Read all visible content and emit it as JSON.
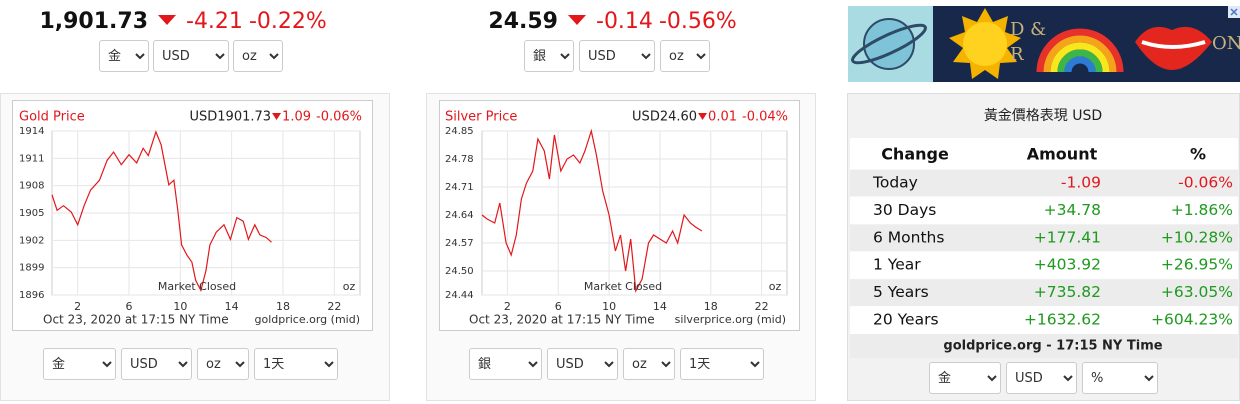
{
  "quotes": [
    {
      "price": "1,901.73",
      "change": "-4.21",
      "change_pct": "-0.22%",
      "selects": [
        "金",
        "USD",
        "oz"
      ]
    },
    {
      "price": "24.59",
      "change": "-0.14",
      "change_pct": "-0.56%",
      "selects": [
        "銀",
        "USD",
        "oz"
      ]
    }
  ],
  "ad": {
    "texts": [
      "D &",
      "R",
      "ON"
    ]
  },
  "chart_data": [
    {
      "type": "line",
      "title": "Gold Price",
      "currency_price": "USD1901.73",
      "change": "1.09",
      "change_pct": "-0.06%",
      "x": [
        0,
        0.4,
        0.9,
        1.5,
        2,
        2.5,
        3,
        3.7,
        4.3,
        4.8,
        5.4,
        6,
        6.6,
        7.1,
        7.5,
        8.1,
        8.5,
        9.1,
        9.5,
        9.8,
        10.1,
        10.5,
        10.9,
        11.2,
        11.6,
        12,
        12.3,
        12.8,
        13.4,
        13.9,
        14.4,
        14.9,
        15.3,
        15.8,
        16.2,
        16.7,
        17.1
      ],
      "values": [
        1907.0,
        1905.3,
        1905.8,
        1905.1,
        1903.7,
        1905.8,
        1907.5,
        1908.6,
        1910.8,
        1911.7,
        1910.3,
        1911.4,
        1910.5,
        1912.1,
        1911.3,
        1913.9,
        1912.5,
        1908.1,
        1908.6,
        1905.3,
        1901.5,
        1900.4,
        1899.6,
        1897.6,
        1896.5,
        1898.7,
        1901.5,
        1902.9,
        1903.7,
        1902.1,
        1904.5,
        1904.1,
        1902.1,
        1903.7,
        1902.6,
        1902.3,
        1901.8
      ],
      "color": "#e3171b",
      "grid": true,
      "xlim": [
        0,
        24
      ],
      "xticks": [
        2,
        6,
        10,
        14,
        18,
        22
      ],
      "ylim": [
        1896,
        1914
      ],
      "yticks": [
        1896,
        1899,
        1902,
        1905,
        1908,
        1911,
        1914
      ],
      "annotation": "Market Closed",
      "unit": "oz",
      "footer_left": "Oct 23, 2020 at 17:15 NY Time",
      "footer_right": "goldprice.org (mid)",
      "selects": [
        "金",
        "USD",
        "oz",
        "1天"
      ]
    },
    {
      "type": "line",
      "title": "Silver Price",
      "currency_price": "USD24.60",
      "change": "0.01",
      "change_pct": "-0.04%",
      "x": [
        0,
        0.4,
        1,
        1.4,
        1.9,
        2.3,
        2.7,
        3.1,
        3.5,
        4,
        4.4,
        4.9,
        5.3,
        5.7,
        6.2,
        6.7,
        7.2,
        7.7,
        8.1,
        8.6,
        9,
        9.5,
        10,
        10.5,
        10.9,
        11.3,
        11.7,
        12.1,
        12.6,
        13.1,
        13.5,
        14,
        14.5,
        15,
        15.4,
        15.9,
        16.4,
        16.8,
        17.3
      ],
      "values": [
        24.64,
        24.63,
        24.62,
        24.67,
        24.57,
        24.54,
        24.59,
        24.68,
        24.72,
        24.75,
        24.83,
        24.8,
        24.73,
        24.84,
        24.75,
        24.78,
        24.79,
        24.77,
        24.8,
        24.85,
        24.79,
        24.7,
        24.64,
        24.55,
        24.59,
        24.5,
        24.58,
        24.45,
        24.48,
        24.57,
        24.59,
        24.58,
        24.57,
        24.6,
        24.57,
        24.64,
        24.62,
        24.61,
        24.6
      ],
      "color": "#e3171b",
      "grid": true,
      "xlim": [
        0,
        24
      ],
      "xticks": [
        2,
        6,
        10,
        14,
        18,
        22
      ],
      "ylim": [
        24.44,
        24.85
      ],
      "yticks": [
        24.44,
        {
          "value": 24.5,
          "label": "24.50"
        },
        24.57,
        24.64,
        24.71,
        24.78,
        24.85
      ],
      "annotation": "Market Closed",
      "unit": "oz",
      "footer_left": "Oct 23, 2020 at 17:15 NY Time",
      "footer_right": "silverprice.org (mid)",
      "selects": [
        "銀",
        "USD",
        "oz",
        "1天"
      ]
    }
  ],
  "performance_table": {
    "title": "黃金價格表現 USD",
    "header": [
      "Change",
      "Amount",
      "%"
    ],
    "rows": [
      [
        "Today",
        "-1.09",
        "-0.06%"
      ],
      [
        "30 Days",
        "+34.78",
        "+1.86%"
      ],
      [
        "6 Months",
        "+177.41",
        "+10.28%"
      ],
      [
        "1 Year",
        "+403.92",
        "+26.95%"
      ],
      [
        "5 Years",
        "+735.82",
        "+63.05%"
      ],
      [
        "20 Years",
        "+1632.62",
        "+604.23%"
      ]
    ],
    "footer": "goldprice.org - 17:15 NY Time",
    "selects": [
      "金",
      "USD",
      "%"
    ]
  }
}
